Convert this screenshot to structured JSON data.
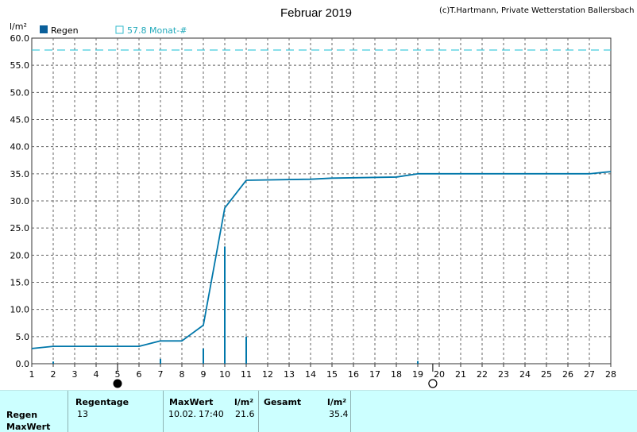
{
  "credit": "(c)T.Hartmann, Private Wetterstation Ballersbach",
  "chart_data": {
    "type": "bar+line",
    "title": "Februar 2019",
    "ylabel": "l/m²",
    "xlabel": "",
    "xlim": [
      1,
      28
    ],
    "ylim": [
      0,
      60
    ],
    "x_ticks": [
      "1",
      "2",
      "3",
      "4",
      "5",
      "6",
      "7",
      "8",
      "9",
      "10",
      "11",
      "12",
      "13",
      "14",
      "15",
      "16",
      "17",
      "18",
      "19",
      "20",
      "21",
      "22",
      "23",
      "24",
      "25",
      "26",
      "27",
      "28"
    ],
    "y_ticks": [
      "0.0",
      "5.0",
      "10.0",
      "15.0",
      "20.0",
      "25.0",
      "30.0",
      "35.0",
      "40.0",
      "45.0",
      "50.0",
      "55.0",
      "60.0"
    ],
    "grid": true,
    "legend": [
      "Regen",
      "57.8 Monat-#"
    ],
    "legend_position": "top-left",
    "series": [
      {
        "name": "Regen",
        "type": "bar",
        "color": "#0077aa",
        "x": [
          2,
          7,
          9,
          10,
          11,
          19
        ],
        "values": [
          0.4,
          0.9,
          2.8,
          21.6,
          5.0,
          0.5
        ]
      },
      {
        "name": "",
        "type": "line",
        "color": "#0077aa",
        "x": [
          1,
          2,
          6,
          7,
          8,
          9,
          10,
          11,
          14,
          15,
          18,
          19,
          27,
          28
        ],
        "values": [
          2.8,
          3.2,
          3.2,
          4.2,
          4.2,
          7.1,
          28.7,
          33.8,
          34.0,
          34.2,
          34.4,
          35.0,
          35.0,
          35.4
        ]
      }
    ],
    "reference_line": {
      "name": "57.8 Monat-#",
      "value": 57.8,
      "color": "#44ccdd"
    },
    "moon_phases": [
      {
        "x": 5,
        "phase": "new-moon"
      },
      {
        "x": 19.7,
        "phase": "full-moon"
      }
    ]
  },
  "stats": {
    "row_labels": [
      "Regen",
      "MaxWert"
    ],
    "regentage_header": "Regentage",
    "regentage_value": "13",
    "maxwert_header": "MaxWert",
    "maxwert_date": "10.02.",
    "maxwert_time": "17:40",
    "maxwert_unit": "l/m²",
    "maxwert_value": "21.6",
    "gesamt_header": "Gesamt",
    "gesamt_unit": "l/m²",
    "gesamt_value": "35.4"
  }
}
